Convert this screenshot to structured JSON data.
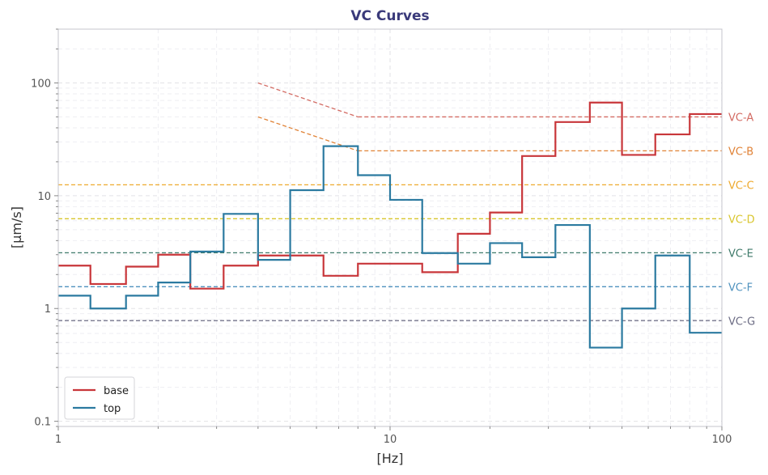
{
  "chart_data": {
    "type": "line",
    "title": "VC Curves",
    "xlabel": "[Hz]",
    "ylabel": "[µm/s]",
    "xscale": "log",
    "yscale": "log",
    "xlim": [
      1,
      100
    ],
    "ylim": [
      0.09,
      300
    ],
    "grid": true,
    "legend_position": "bottom-left",
    "x_tick_labels": [
      "1",
      "10",
      "100"
    ],
    "y_tick_labels": [
      "0.1",
      "1",
      "10",
      "100"
    ],
    "band_edges": [
      1,
      1.25,
      1.6,
      2,
      2.5,
      3.15,
      4,
      5,
      6.3,
      8,
      10,
      12.5,
      16,
      20,
      25,
      31.5,
      40,
      50,
      63,
      80,
      100
    ],
    "series": [
      {
        "name": "base",
        "color": "#c8363a",
        "values": [
          2.4,
          1.65,
          2.35,
          3.0,
          1.5,
          2.4,
          2.95,
          2.95,
          1.95,
          2.5,
          2.5,
          2.1,
          4.6,
          7.1,
          22.5,
          45,
          67,
          23,
          35,
          53
        ]
      },
      {
        "name": "top",
        "color": "#2b7aa0",
        "values": [
          1.3,
          1.0,
          1.3,
          1.7,
          3.2,
          6.9,
          2.7,
          11.2,
          27.5,
          15.2,
          9.2,
          3.1,
          2.5,
          3.8,
          2.85,
          5.5,
          0.45,
          1.0,
          2.95,
          0.61
        ]
      }
    ],
    "criteria": [
      {
        "name": "VC-A",
        "value": 50,
        "color": "#d36b63"
      },
      {
        "name": "VC-B",
        "value": 25,
        "color": "#e08236"
      },
      {
        "name": "VC-C",
        "value": 12.5,
        "color": "#eeaa2e"
      },
      {
        "name": "VC-D",
        "value": 6.25,
        "color": "#d9c62e"
      },
      {
        "name": "VC-E",
        "value": 3.12,
        "color": "#3f7a6a"
      },
      {
        "name": "VC-F",
        "value": 1.56,
        "color": "#4f92be"
      },
      {
        "name": "VC-G",
        "value": 0.78,
        "color": "#6c6c84"
      }
    ],
    "low_freq_extensions": [
      {
        "curve": "VC-A",
        "points": [
          [
            4,
            100
          ],
          [
            8,
            50
          ]
        ],
        "color": "#d36b63"
      },
      {
        "curve": "VC-B",
        "points": [
          [
            4,
            50
          ],
          [
            8,
            25
          ]
        ],
        "color": "#e08236"
      }
    ]
  }
}
